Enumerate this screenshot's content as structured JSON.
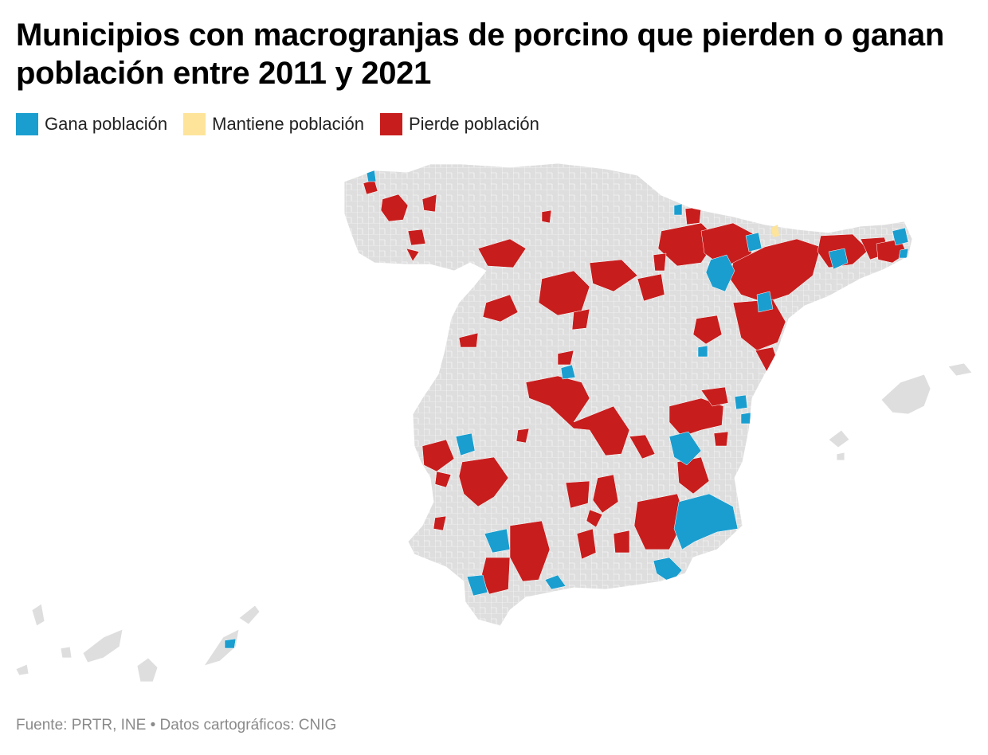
{
  "title": "Municipios con macrogranjas de porcino que pierden o ganan población entre 2011 y 2021",
  "legend": [
    {
      "label": "Gana población",
      "color": "#1a9ecf"
    },
    {
      "label": "Mantiene población",
      "color": "#fde49a"
    },
    {
      "label": "Pierde población",
      "color": "#c81d1d"
    }
  ],
  "colors": {
    "land": "#dedede",
    "border": "#ffffff",
    "gain": "#1a9ecf",
    "same": "#fde49a",
    "loss": "#c81d1d"
  },
  "source": "Fuente: PRTR, INE • Datos cartográficos: CNIG"
}
